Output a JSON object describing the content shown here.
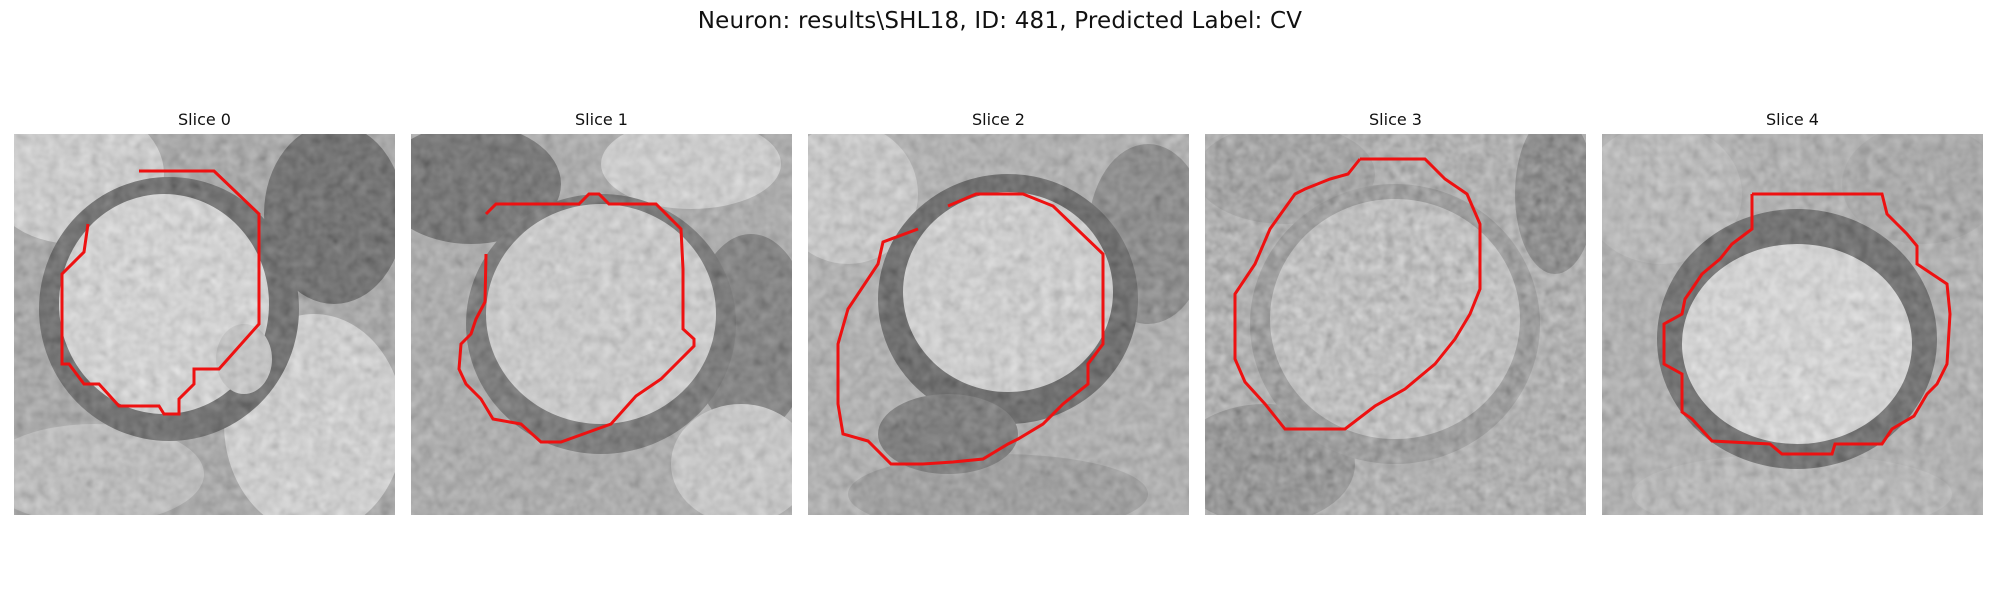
{
  "figure": {
    "title": "Neuron: results\\SHL18, ID: 481, Predicted Label: CV"
  },
  "slices": [
    {
      "title": "Slice 0"
    },
    {
      "title": "Slice 1"
    },
    {
      "title": "Slice 2"
    },
    {
      "title": "Slice 3"
    },
    {
      "title": "Slice 4"
    }
  ],
  "colors": {
    "contour": "#ff0000",
    "background": "#ffffff"
  }
}
